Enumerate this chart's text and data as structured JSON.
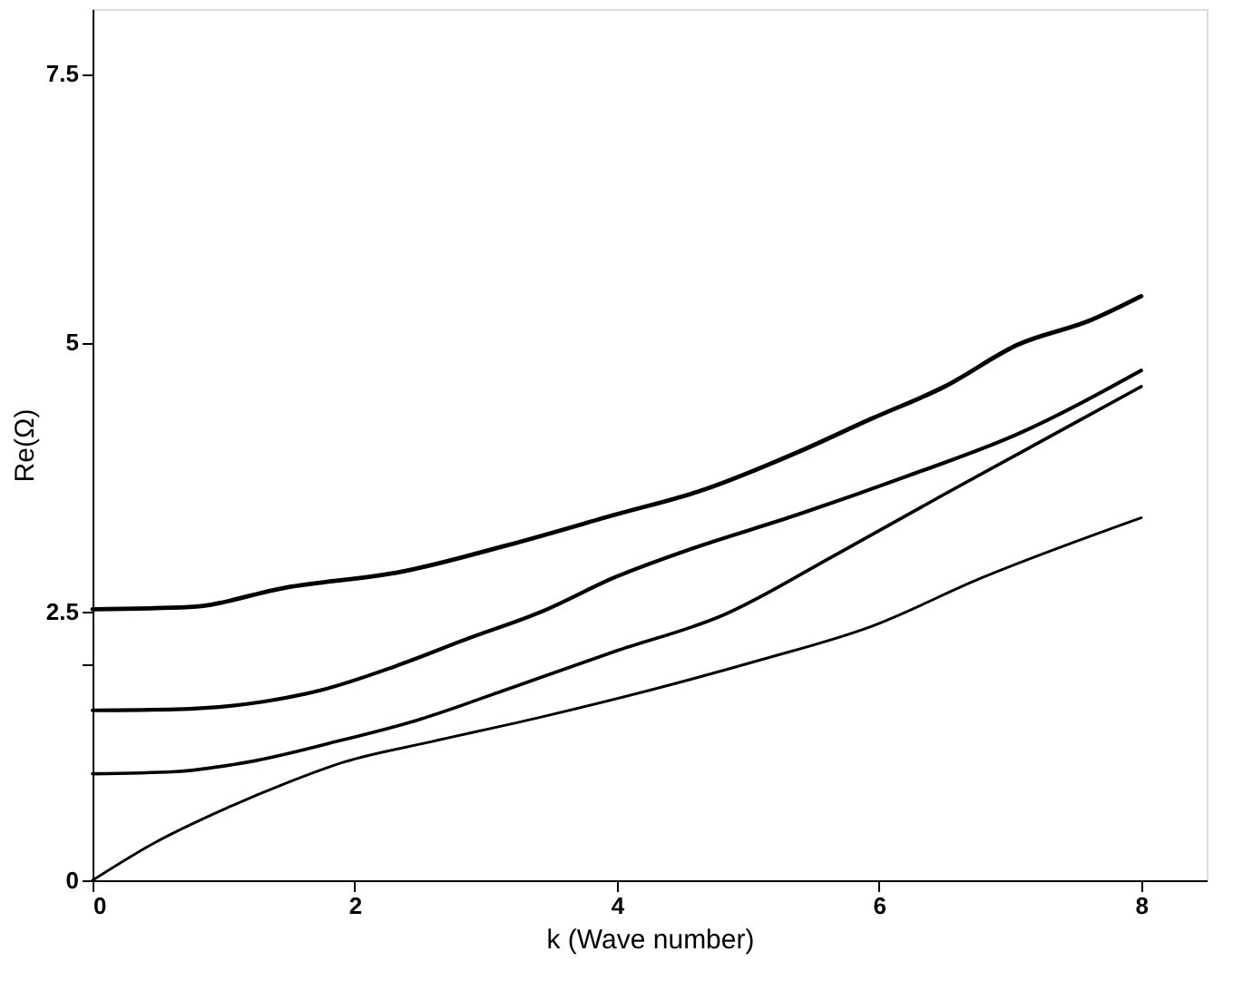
{
  "chart_data": {
    "type": "line",
    "xlabel": "k (Wave number)",
    "ylabel": "Re(Ω)",
    "xlim": [
      0,
      8.5
    ],
    "ylim": [
      0,
      8.1
    ],
    "xticks": [
      0,
      2,
      4,
      6,
      8
    ],
    "yticks": [
      0,
      {
        "value": 2,
        "label": null
      },
      2.5,
      5,
      7.5
    ],
    "grid": false,
    "legend": false,
    "marker": "none",
    "line_style": "solid",
    "series": [
      {
        "color": "#000000",
        "x": [
          0,
          0.74,
          1.47,
          2.36,
          3.15,
          3.99,
          4.66,
          5.38,
          5.94,
          6.5,
          7.06,
          7.62,
          8
        ],
        "values": [
          2.52,
          2.54,
          2.72,
          2.87,
          3.11,
          3.4,
          3.63,
          3.98,
          4.29,
          4.59,
          4.98,
          5.21,
          5.43
        ]
      },
      {
        "color": "#000000",
        "x": [
          0,
          0.63,
          1.3,
          1.75,
          2.31,
          2.87,
          3.43,
          3.99,
          4.54,
          5.38,
          6.22,
          7.06,
          8
        ],
        "values": [
          1.58,
          1.59,
          1.66,
          1.77,
          1.99,
          2.25,
          2.5,
          2.82,
          3.07,
          3.4,
          3.76,
          4.15,
          4.74
        ]
      },
      {
        "color": "#000000",
        "x": [
          0,
          0.63,
          1.19,
          1.86,
          2.48,
          3.15,
          3.99,
          4.82,
          5.66,
          6.5,
          7.34,
          8
        ],
        "values": [
          0.99,
          1.01,
          1.1,
          1.29,
          1.49,
          1.77,
          2.13,
          2.47,
          3.02,
          3.59,
          4.15,
          4.59
        ]
      },
      {
        "color": "#000000",
        "x": [
          0,
          0.46,
          1.02,
          1.47,
          1.92,
          2.59,
          3.43,
          4.26,
          5.1,
          5.94,
          6.78,
          8
        ],
        "values": [
          0,
          0.34,
          0.67,
          0.9,
          1.1,
          1.29,
          1.52,
          1.77,
          2.05,
          2.36,
          2.81,
          3.37
        ]
      }
    ]
  }
}
